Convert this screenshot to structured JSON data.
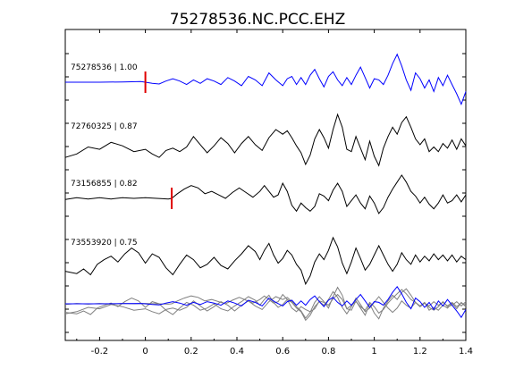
{
  "chart_data": {
    "type": "line",
    "title": "75278536.NC.PCC.EHZ",
    "xlabel": "",
    "ylabel": "",
    "xlim": [
      -0.35,
      1.4
    ],
    "xticks": [
      -0.2,
      0,
      0.2,
      0.4,
      0.6,
      0.8,
      1,
      1.2,
      1.4
    ],
    "xtick_labels": [
      "-0.2",
      "0",
      "0.2",
      "0.4",
      "0.6",
      "0.8",
      "1",
      "1.2",
      "1.4"
    ],
    "grid": false,
    "legend": "none",
    "colors": {
      "reference": "#0000ff",
      "neighbor": "#000000",
      "stack_neighbor": "#808080",
      "pick": "#e00000"
    },
    "traces": [
      {
        "label": "75278536 | 1.00",
        "color": "#0000ff",
        "pick_time": 0.0,
        "points": [
          [
            -0.35,
            0
          ],
          [
            -0.2,
            0
          ],
          [
            -0.1,
            0.02
          ],
          [
            -0.02,
            0.05
          ],
          [
            0.0,
            0.0
          ],
          [
            0.03,
            -0.1
          ],
          [
            0.06,
            -0.15
          ],
          [
            0.09,
            0.1
          ],
          [
            0.12,
            0.3
          ],
          [
            0.15,
            0.1
          ],
          [
            0.18,
            -0.2
          ],
          [
            0.21,
            0.2
          ],
          [
            0.24,
            -0.1
          ],
          [
            0.27,
            0.3
          ],
          [
            0.3,
            0.1
          ],
          [
            0.33,
            -0.2
          ],
          [
            0.36,
            0.4
          ],
          [
            0.39,
            0.1
          ],
          [
            0.42,
            -0.3
          ],
          [
            0.45,
            0.5
          ],
          [
            0.48,
            0.2
          ],
          [
            0.51,
            -0.3
          ],
          [
            0.54,
            0.8
          ],
          [
            0.57,
            0.2
          ],
          [
            0.6,
            -0.3
          ],
          [
            0.62,
            0.3
          ],
          [
            0.64,
            0.5
          ],
          [
            0.66,
            -0.2
          ],
          [
            0.68,
            0.4
          ],
          [
            0.7,
            -0.2
          ],
          [
            0.72,
            0.6
          ],
          [
            0.74,
            1.1
          ],
          [
            0.76,
            0.3
          ],
          [
            0.78,
            -0.4
          ],
          [
            0.8,
            0.5
          ],
          [
            0.82,
            0.9
          ],
          [
            0.84,
            0.2
          ],
          [
            0.86,
            -0.3
          ],
          [
            0.88,
            0.4
          ],
          [
            0.9,
            -0.2
          ],
          [
            0.92,
            0.6
          ],
          [
            0.94,
            1.3
          ],
          [
            0.96,
            0.4
          ],
          [
            0.98,
            -0.5
          ],
          [
            1.0,
            0.3
          ],
          [
            1.02,
            0.2
          ],
          [
            1.04,
            -0.2
          ],
          [
            1.06,
            0.6
          ],
          [
            1.08,
            1.6
          ],
          [
            1.1,
            2.4
          ],
          [
            1.12,
            1.4
          ],
          [
            1.14,
            0.2
          ],
          [
            1.16,
            -0.7
          ],
          [
            1.18,
            0.8
          ],
          [
            1.2,
            0.3
          ],
          [
            1.22,
            -0.5
          ],
          [
            1.24,
            0.2
          ],
          [
            1.26,
            -0.8
          ],
          [
            1.28,
            0.4
          ],
          [
            1.3,
            -0.3
          ],
          [
            1.32,
            0.6
          ],
          [
            1.34,
            -0.2
          ],
          [
            1.36,
            -1.0
          ],
          [
            1.38,
            -1.9
          ],
          [
            1.4,
            -0.8
          ]
        ]
      },
      {
        "label": "72760325 | 0.87",
        "color": "#000000",
        "pick_time": null,
        "points": [
          [
            -0.35,
            -1.4
          ],
          [
            -0.3,
            -1.1
          ],
          [
            -0.25,
            -0.5
          ],
          [
            -0.2,
            -0.7
          ],
          [
            -0.15,
            -0.1
          ],
          [
            -0.1,
            -0.4
          ],
          [
            -0.05,
            -0.9
          ],
          [
            0.0,
            -0.7
          ],
          [
            0.03,
            -1.1
          ],
          [
            0.06,
            -1.4
          ],
          [
            0.09,
            -0.8
          ],
          [
            0.12,
            -0.6
          ],
          [
            0.15,
            -0.9
          ],
          [
            0.18,
            -0.5
          ],
          [
            0.21,
            0.4
          ],
          [
            0.24,
            -0.3
          ],
          [
            0.27,
            -1.0
          ],
          [
            0.3,
            -0.4
          ],
          [
            0.33,
            0.3
          ],
          [
            0.36,
            -0.2
          ],
          [
            0.39,
            -1.0
          ],
          [
            0.42,
            -0.2
          ],
          [
            0.45,
            0.4
          ],
          [
            0.48,
            -0.3
          ],
          [
            0.51,
            -0.8
          ],
          [
            0.54,
            0.3
          ],
          [
            0.57,
            1.0
          ],
          [
            0.6,
            0.6
          ],
          [
            0.62,
            0.9
          ],
          [
            0.64,
            0.3
          ],
          [
            0.66,
            -0.4
          ],
          [
            0.68,
            -1.0
          ],
          [
            0.7,
            -2.0
          ],
          [
            0.72,
            -1.2
          ],
          [
            0.74,
            0.2
          ],
          [
            0.76,
            1.0
          ],
          [
            0.78,
            0.3
          ],
          [
            0.8,
            -0.6
          ],
          [
            0.82,
            1.0
          ],
          [
            0.84,
            2.3
          ],
          [
            0.86,
            1.2
          ],
          [
            0.88,
            -0.7
          ],
          [
            0.9,
            -0.9
          ],
          [
            0.92,
            0.4
          ],
          [
            0.94,
            -0.6
          ],
          [
            0.96,
            -1.6
          ],
          [
            0.98,
            0.0
          ],
          [
            1.0,
            -1.3
          ],
          [
            1.02,
            -2.1
          ],
          [
            1.04,
            -0.6
          ],
          [
            1.06,
            0.4
          ],
          [
            1.08,
            1.2
          ],
          [
            1.1,
            0.6
          ],
          [
            1.12,
            1.6
          ],
          [
            1.14,
            2.1
          ],
          [
            1.16,
            1.2
          ],
          [
            1.18,
            0.2
          ],
          [
            1.2,
            -0.3
          ],
          [
            1.22,
            0.2
          ],
          [
            1.24,
            -0.9
          ],
          [
            1.26,
            -0.5
          ],
          [
            1.28,
            -0.9
          ],
          [
            1.3,
            -0.2
          ],
          [
            1.32,
            -0.6
          ],
          [
            1.34,
            0.1
          ],
          [
            1.36,
            -0.7
          ],
          [
            1.38,
            0.2
          ],
          [
            1.4,
            -0.4
          ]
        ]
      },
      {
        "label": "73156855 | 0.82",
        "color": "#000000",
        "pick_time": 0.115,
        "points": [
          [
            -0.35,
            -0.1
          ],
          [
            -0.3,
            0.05
          ],
          [
            -0.25,
            -0.05
          ],
          [
            -0.2,
            0.05
          ],
          [
            -0.15,
            -0.05
          ],
          [
            -0.1,
            0.05
          ],
          [
            -0.05,
            0.0
          ],
          [
            0.0,
            0.05
          ],
          [
            0.05,
            0.0
          ],
          [
            0.1,
            -0.05
          ],
          [
            0.115,
            0.0
          ],
          [
            0.14,
            0.4
          ],
          [
            0.17,
            0.8
          ],
          [
            0.2,
            1.1
          ],
          [
            0.23,
            0.9
          ],
          [
            0.26,
            0.4
          ],
          [
            0.29,
            0.6
          ],
          [
            0.32,
            0.3
          ],
          [
            0.35,
            0.0
          ],
          [
            0.38,
            0.5
          ],
          [
            0.41,
            0.9
          ],
          [
            0.44,
            0.5
          ],
          [
            0.47,
            0.1
          ],
          [
            0.5,
            0.6
          ],
          [
            0.52,
            1.1
          ],
          [
            0.54,
            0.6
          ],
          [
            0.56,
            0.1
          ],
          [
            0.58,
            0.3
          ],
          [
            0.6,
            1.3
          ],
          [
            0.62,
            0.6
          ],
          [
            0.64,
            -0.6
          ],
          [
            0.66,
            -1.1
          ],
          [
            0.68,
            -0.4
          ],
          [
            0.7,
            -0.8
          ],
          [
            0.72,
            -1.1
          ],
          [
            0.74,
            -0.7
          ],
          [
            0.76,
            0.4
          ],
          [
            0.78,
            0.2
          ],
          [
            0.8,
            -0.2
          ],
          [
            0.82,
            0.7
          ],
          [
            0.84,
            1.3
          ],
          [
            0.86,
            0.6
          ],
          [
            0.88,
            -0.7
          ],
          [
            0.9,
            -0.2
          ],
          [
            0.92,
            0.3
          ],
          [
            0.94,
            -0.4
          ],
          [
            0.96,
            -0.9
          ],
          [
            0.98,
            0.2
          ],
          [
            1.0,
            -0.4
          ],
          [
            1.02,
            -1.3
          ],
          [
            1.04,
            -0.8
          ],
          [
            1.06,
            0.1
          ],
          [
            1.08,
            0.8
          ],
          [
            1.1,
            1.4
          ],
          [
            1.12,
            2.0
          ],
          [
            1.14,
            1.4
          ],
          [
            1.16,
            0.6
          ],
          [
            1.18,
            0.2
          ],
          [
            1.2,
            -0.4
          ],
          [
            1.22,
            0.1
          ],
          [
            1.24,
            -0.5
          ],
          [
            1.26,
            -0.9
          ],
          [
            1.28,
            -0.4
          ],
          [
            1.3,
            0.3
          ],
          [
            1.32,
            -0.4
          ],
          [
            1.34,
            -0.2
          ],
          [
            1.36,
            0.3
          ],
          [
            1.38,
            -0.3
          ],
          [
            1.4,
            0.3
          ]
        ]
      },
      {
        "label": "73553920 | 0.75",
        "color": "#000000",
        "pick_time": null,
        "points": [
          [
            -0.35,
            -1.2
          ],
          [
            -0.3,
            -1.4
          ],
          [
            -0.27,
            -1.0
          ],
          [
            -0.24,
            -1.5
          ],
          [
            -0.21,
            -0.6
          ],
          [
            -0.18,
            -0.2
          ],
          [
            -0.15,
            0.1
          ],
          [
            -0.12,
            -0.4
          ],
          [
            -0.09,
            0.3
          ],
          [
            -0.06,
            0.8
          ],
          [
            -0.03,
            0.4
          ],
          [
            0.0,
            -0.5
          ],
          [
            0.03,
            0.3
          ],
          [
            0.06,
            0.0
          ],
          [
            0.09,
            -0.9
          ],
          [
            0.12,
            -1.5
          ],
          [
            0.15,
            -0.6
          ],
          [
            0.18,
            0.2
          ],
          [
            0.21,
            -0.2
          ],
          [
            0.24,
            -0.9
          ],
          [
            0.27,
            -0.6
          ],
          [
            0.3,
            0.0
          ],
          [
            0.33,
            -0.7
          ],
          [
            0.36,
            -1.0
          ],
          [
            0.39,
            -0.3
          ],
          [
            0.42,
            0.3
          ],
          [
            0.45,
            1.0
          ],
          [
            0.48,
            0.5
          ],
          [
            0.5,
            -0.2
          ],
          [
            0.52,
            0.6
          ],
          [
            0.54,
            1.2
          ],
          [
            0.56,
            0.2
          ],
          [
            0.58,
            -0.5
          ],
          [
            0.6,
            -0.1
          ],
          [
            0.62,
            0.6
          ],
          [
            0.64,
            0.2
          ],
          [
            0.66,
            -0.6
          ],
          [
            0.68,
            -1.1
          ],
          [
            0.7,
            -2.3
          ],
          [
            0.72,
            -1.6
          ],
          [
            0.74,
            -0.4
          ],
          [
            0.76,
            0.3
          ],
          [
            0.78,
            -0.2
          ],
          [
            0.8,
            0.6
          ],
          [
            0.82,
            1.7
          ],
          [
            0.84,
            0.9
          ],
          [
            0.86,
            -0.5
          ],
          [
            0.88,
            -1.4
          ],
          [
            0.9,
            -0.4
          ],
          [
            0.92,
            0.8
          ],
          [
            0.94,
            -0.1
          ],
          [
            0.96,
            -1.1
          ],
          [
            0.98,
            -0.6
          ],
          [
            1.0,
            0.2
          ],
          [
            1.02,
            1.0
          ],
          [
            1.04,
            0.2
          ],
          [
            1.06,
            -0.6
          ],
          [
            1.08,
            -1.2
          ],
          [
            1.1,
            -0.6
          ],
          [
            1.12,
            0.4
          ],
          [
            1.14,
            -0.2
          ],
          [
            1.16,
            -0.6
          ],
          [
            1.18,
            0.2
          ],
          [
            1.2,
            -0.4
          ],
          [
            1.22,
            0.1
          ],
          [
            1.24,
            -0.3
          ],
          [
            1.26,
            0.3
          ],
          [
            1.28,
            -0.2
          ],
          [
            1.3,
            0.2
          ],
          [
            1.32,
            -0.3
          ],
          [
            1.34,
            0.2
          ],
          [
            1.36,
            -0.4
          ],
          [
            1.38,
            0.1
          ],
          [
            1.4,
            -0.2
          ]
        ]
      }
    ]
  }
}
